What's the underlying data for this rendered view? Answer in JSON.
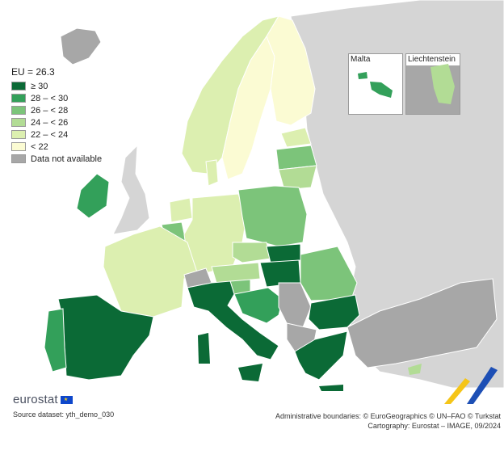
{
  "legend": {
    "title": "EU = 26.3",
    "items": [
      {
        "label": "≥ 30",
        "color": "#0b6a36"
      },
      {
        "label": "28 – < 30",
        "color": "#33a05a"
      },
      {
        "label": "26 – < 28",
        "color": "#7cc47a"
      },
      {
        "label": "24 – < 26",
        "color": "#b2dc95"
      },
      {
        "label": "22 – < 24",
        "color": "#dcefb0"
      },
      {
        "label": "< 22",
        "color": "#fbfbd3"
      },
      {
        "label": "Data not available",
        "color": "#a7a7a7"
      }
    ]
  },
  "insets": {
    "malta": {
      "label": "Malta",
      "color": "#33a05a"
    },
    "liechtenstein": {
      "label": "Liechtenstein",
      "color": "#b2dc95"
    }
  },
  "colors": {
    "sea": "#ffffff",
    "non_eu": "#d5d5d5",
    "no_data": "#a7a7a7",
    "border": "#ffffff"
  },
  "footer": {
    "logo_text": "eurostat",
    "source": "Source dataset: yth_demo_030",
    "credit_line1": "Administrative boundaries: © EuroGeographics © UN–FAO © Turkstat",
    "credit_line2": "Cartography: Eurostat – IMAGE, 09/2024"
  }
}
